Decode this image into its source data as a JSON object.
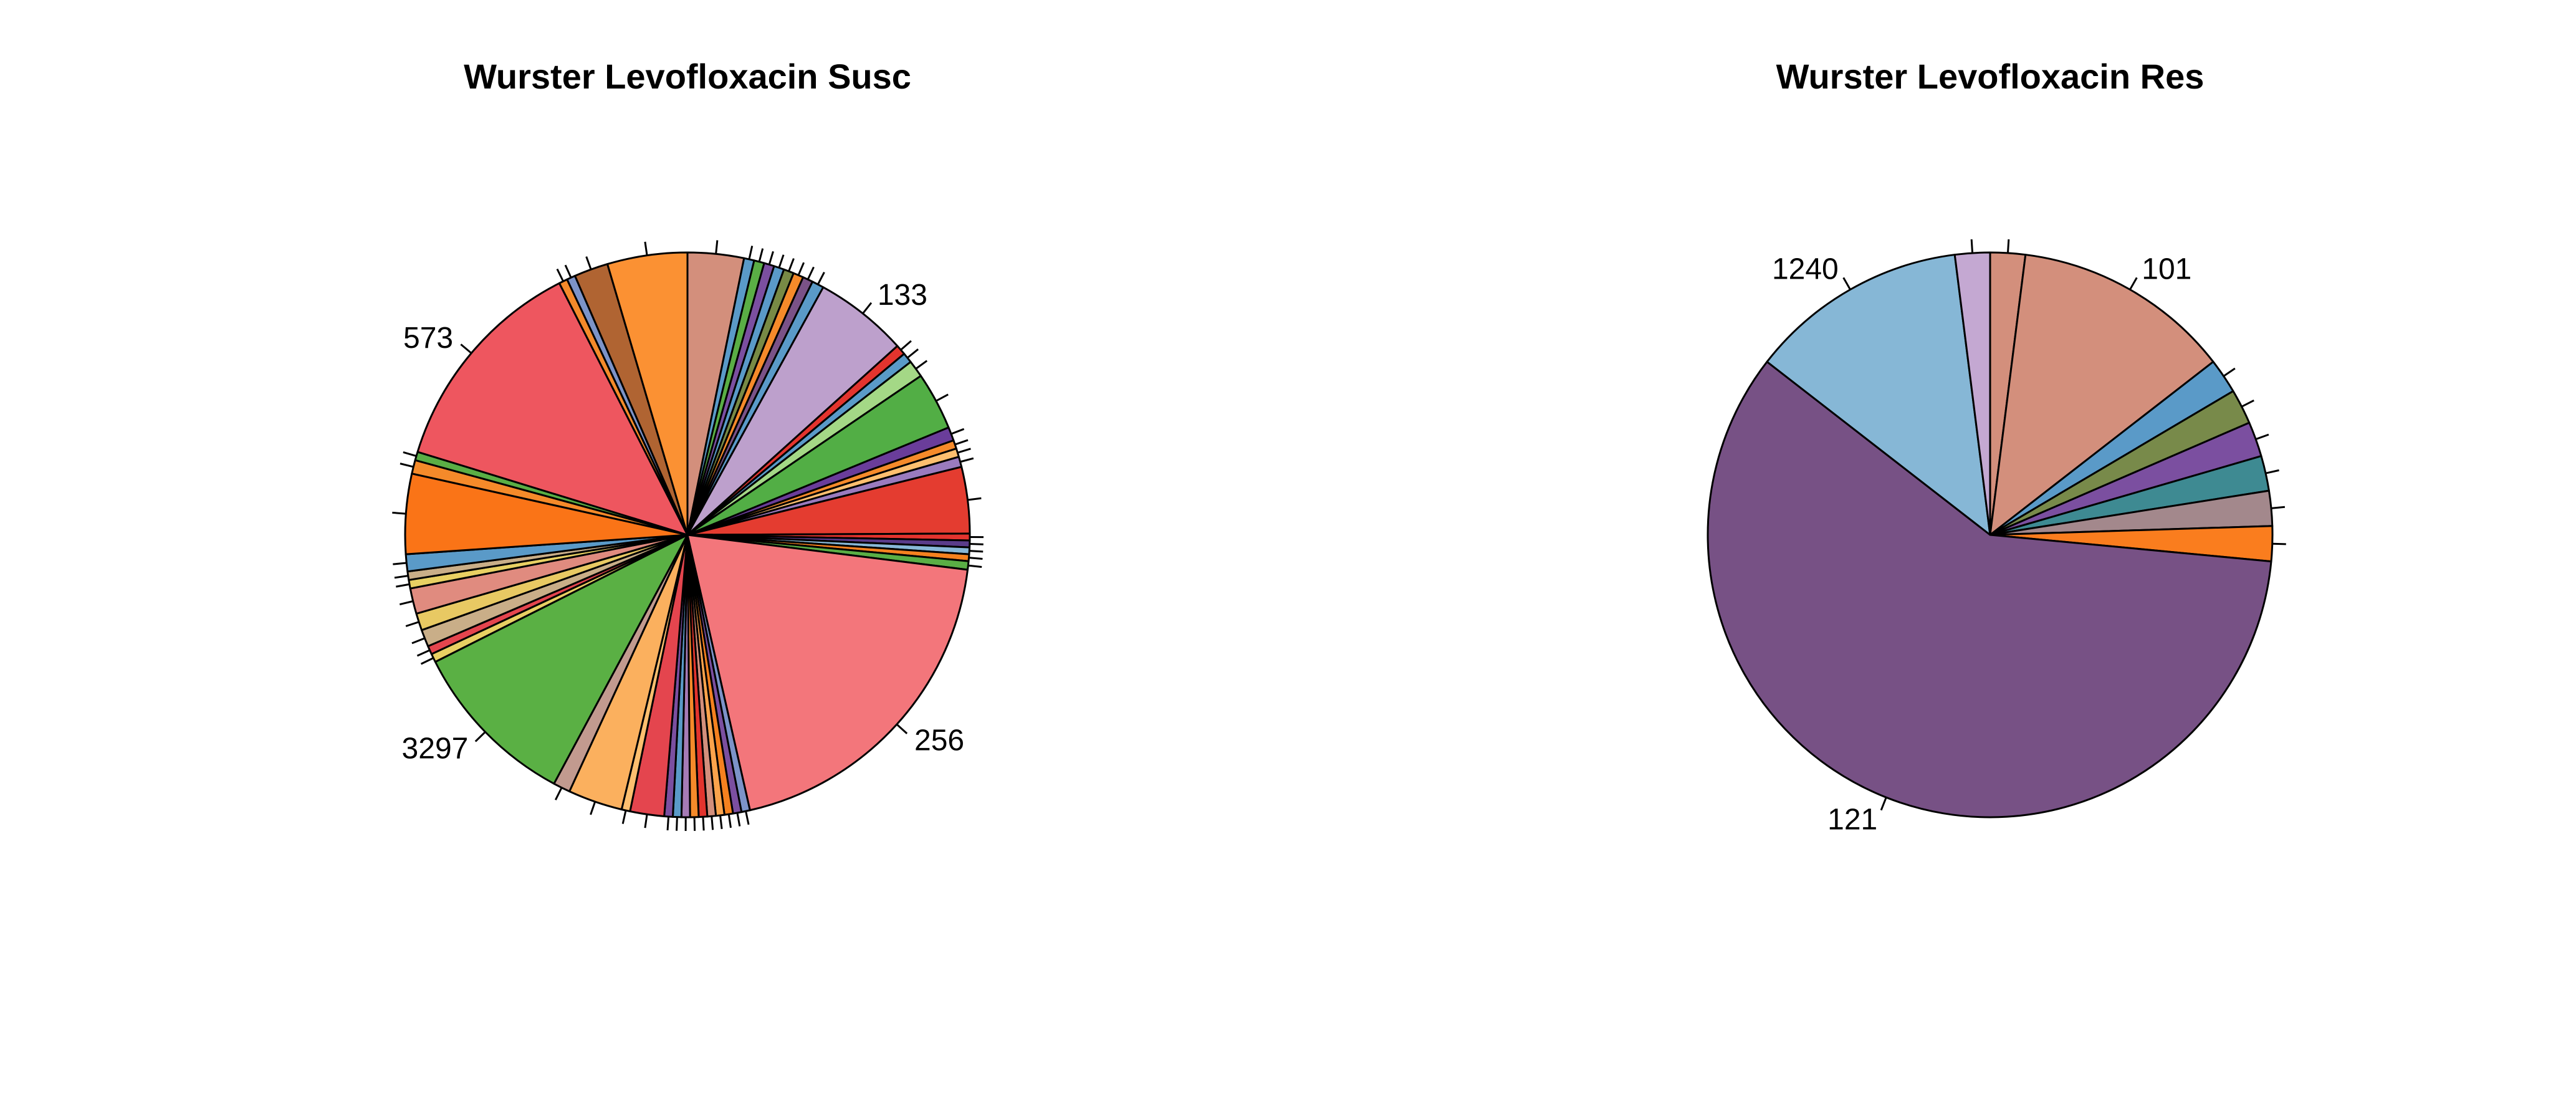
{
  "chart_data": [
    {
      "type": "pie",
      "title": "Wurster Levofloxacin Susc",
      "slices": [
        {
          "label": "",
          "value": 0.033,
          "color": "#D38F7C"
        },
        {
          "label": "",
          "value": 0.006,
          "color": "#5A9AC8"
        },
        {
          "label": "",
          "value": 0.006,
          "color": "#5AAE45"
        },
        {
          "label": "",
          "value": 0.006,
          "color": "#7B4FA0"
        },
        {
          "label": "",
          "value": 0.006,
          "color": "#5A9AC8"
        },
        {
          "label": "",
          "value": 0.006,
          "color": "#788A45"
        },
        {
          "label": "",
          "value": 0.006,
          "color": "#F58A2A"
        },
        {
          "label": "",
          "value": 0.006,
          "color": "#7A5287"
        },
        {
          "label": "",
          "value": 0.007,
          "color": "#5A9AC8"
        },
        {
          "label": "133",
          "value": 0.055,
          "color": "#BDA0CC"
        },
        {
          "label": "",
          "value": 0.006,
          "color": "#E3342E"
        },
        {
          "label": "",
          "value": 0.006,
          "color": "#5A9AC8"
        },
        {
          "label": "",
          "value": 0.01,
          "color": "#A4D886"
        },
        {
          "label": "",
          "value": 0.034,
          "color": "#52AE45"
        },
        {
          "label": "",
          "value": 0.008,
          "color": "#6A3D9A"
        },
        {
          "label": "",
          "value": 0.005,
          "color": "#F58A2A"
        },
        {
          "label": "",
          "value": 0.005,
          "color": "#FDBF6F"
        },
        {
          "label": "",
          "value": 0.006,
          "color": "#9A7BBE"
        },
        {
          "label": "",
          "value": 0.039,
          "color": "#E43C30"
        },
        {
          "label": "",
          "value": 0.004,
          "color": "#E3342E"
        },
        {
          "label": "",
          "value": 0.004,
          "color": "#5A3C8A"
        },
        {
          "label": "",
          "value": 0.004,
          "color": "#88B8D8"
        },
        {
          "label": "",
          "value": 0.004,
          "color": "#F5811F"
        },
        {
          "label": "",
          "value": 0.005,
          "color": "#5AAE45"
        },
        {
          "label": "256",
          "value": 0.2,
          "color": "#F3767B"
        },
        {
          "label": "",
          "value": 0.005,
          "color": "#7C93C8"
        },
        {
          "label": "",
          "value": 0.005,
          "color": "#7B4FA0"
        },
        {
          "label": "",
          "value": 0.005,
          "color": "#F5811F"
        },
        {
          "label": "",
          "value": 0.005,
          "color": "#FBA34C"
        },
        {
          "label": "",
          "value": 0.005,
          "color": "#D38F7C"
        },
        {
          "label": "",
          "value": 0.005,
          "color": "#E3342E"
        },
        {
          "label": "",
          "value": 0.005,
          "color": "#F58A2A"
        },
        {
          "label": "",
          "value": 0.005,
          "color": "#A67BB6"
        },
        {
          "label": "",
          "value": 0.005,
          "color": "#5A9AC8"
        },
        {
          "label": "",
          "value": 0.005,
          "color": "#7B4FA0"
        },
        {
          "label": "",
          "value": 0.02,
          "color": "#E4454E"
        },
        {
          "label": "",
          "value": 0.005,
          "color": "#FDBF6F"
        },
        {
          "label": "",
          "value": 0.032,
          "color": "#FBB05E"
        },
        {
          "label": "",
          "value": 0.01,
          "color": "#C29A8F"
        },
        {
          "label": "3297",
          "value": 0.1,
          "color": "#5AB044"
        },
        {
          "label": "",
          "value": 0.005,
          "color": "#E8D063"
        },
        {
          "label": "",
          "value": 0.005,
          "color": "#E4454E"
        },
        {
          "label": "",
          "value": 0.01,
          "color": "#C9AE88"
        },
        {
          "label": "",
          "value": 0.01,
          "color": "#E8C963"
        },
        {
          "label": "",
          "value": 0.015,
          "color": "#E08B7F"
        },
        {
          "label": "",
          "value": 0.005,
          "color": "#E8D063"
        },
        {
          "label": "",
          "value": 0.005,
          "color": "#C9AE88"
        },
        {
          "label": "",
          "value": 0.01,
          "color": "#5A9AC8"
        },
        {
          "label": "",
          "value": 0.047,
          "color": "#FA7417"
        },
        {
          "label": "",
          "value": 0.008,
          "color": "#F58A2A"
        },
        {
          "label": "",
          "value": 0.005,
          "color": "#5AAE45"
        },
        {
          "label": "573",
          "value": 0.131,
          "color": "#EE565F"
        },
        {
          "label": "",
          "value": 0.005,
          "color": "#F58A2A"
        },
        {
          "label": "",
          "value": 0.005,
          "color": "#7C93C8"
        },
        {
          "label": "",
          "value": 0.02,
          "color": "#B06432"
        },
        {
          "label": "",
          "value": 0.047,
          "color": "#FB9133"
        }
      ]
    },
    {
      "type": "pie",
      "title": "Wurster Levofloxacin Res",
      "slices": [
        {
          "label": "",
          "value": 0.02,
          "color": "#D38F7C"
        },
        {
          "label": "101",
          "value": 0.125,
          "color": "#D38F7C"
        },
        {
          "label": "",
          "value": 0.02,
          "color": "#5A9AC8"
        },
        {
          "label": "",
          "value": 0.02,
          "color": "#788A4A"
        },
        {
          "label": "",
          "value": 0.02,
          "color": "#7B4FA0"
        },
        {
          "label": "",
          "value": 0.02,
          "color": "#3E8A92"
        },
        {
          "label": "",
          "value": 0.02,
          "color": "#A3888C"
        },
        {
          "label": "",
          "value": 0.02,
          "color": "#FA7D1E"
        },
        {
          "label": "121",
          "value": 0.59,
          "color": "#775185"
        },
        {
          "label": "1240",
          "value": 0.125,
          "color": "#86B7D6"
        },
        {
          "label": "",
          "value": 0.02,
          "color": "#C4A8D2"
        }
      ]
    }
  ]
}
